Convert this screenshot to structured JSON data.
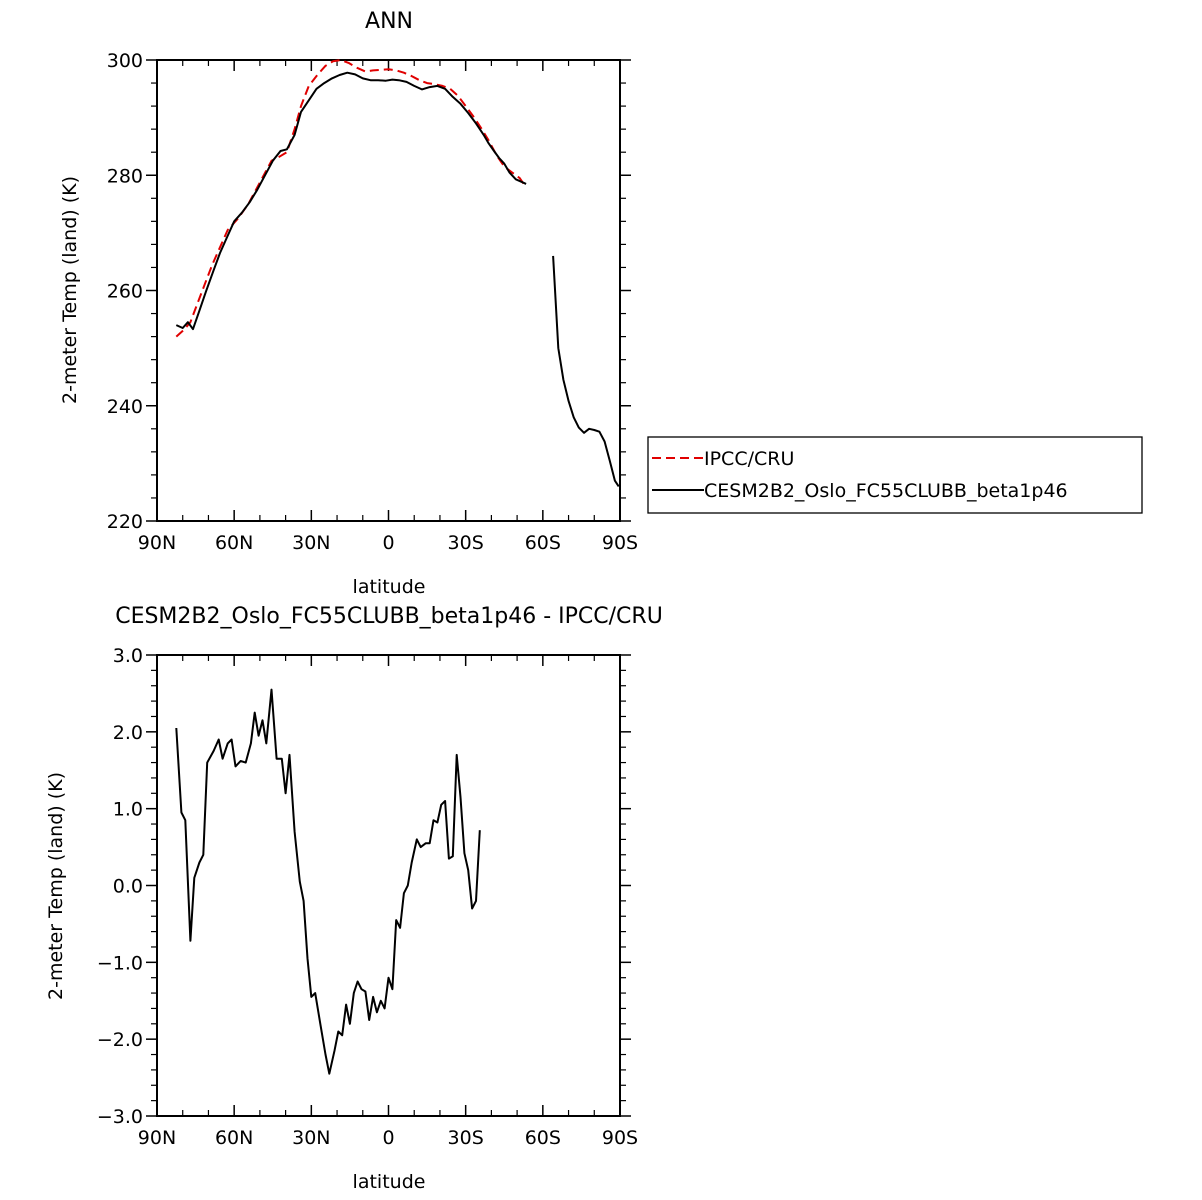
{
  "chart_data": [
    {
      "type": "line",
      "title": "ANN",
      "xlabel": "latitude",
      "ylabel": "2-meter Temp (land) (K)",
      "xlim": [
        90,
        -90
      ],
      "ylim": [
        220,
        300
      ],
      "xticks": [
        90,
        60,
        30,
        0,
        -30,
        -60,
        -90
      ],
      "xtick_labels": [
        "90N",
        "60N",
        "30N",
        "0",
        "30S",
        "60S",
        "90S"
      ],
      "yticks": [
        220,
        240,
        260,
        280,
        300
      ],
      "ytick_labels": [
        "220",
        "240",
        "260",
        "280",
        "300"
      ],
      "grid": false,
      "legend_position": "right",
      "series": [
        {
          "name": "IPCC/CRU",
          "color": "#e00000",
          "style": "dashed",
          "points": [
            [
              82.5,
              252
            ],
            [
              79.5,
              253.2
            ],
            [
              77,
              254.5
            ],
            [
              74.5,
              257.5
            ],
            [
              71.5,
              261
            ],
            [
              68.5,
              264.5
            ],
            [
              65.5,
              267.5
            ],
            [
              62.5,
              270.5
            ],
            [
              58.5,
              272.5
            ],
            [
              54.5,
              275
            ],
            [
              51.5,
              277.5
            ],
            [
              48.5,
              280
            ],
            [
              45.5,
              282.5
            ],
            [
              42.5,
              283.2
            ],
            [
              39.5,
              284
            ],
            [
              36.5,
              288
            ],
            [
              34,
              292
            ],
            [
              31,
              295.5
            ],
            [
              27.5,
              297.5
            ],
            [
              24.5,
              299
            ],
            [
              21.5,
              299.8
            ],
            [
              18.5,
              300
            ],
            [
              15.5,
              299.5
            ],
            [
              12,
              298.6
            ],
            [
              9,
              298
            ],
            [
              6,
              298.2
            ],
            [
              3,
              298.3
            ],
            [
              0,
              298.4
            ],
            [
              -3,
              298.2
            ],
            [
              -6,
              297.8
            ],
            [
              -9,
              297.2
            ],
            [
              -12,
              296.5
            ],
            [
              -15,
              296
            ],
            [
              -18,
              295.8
            ],
            [
              -21,
              295.5
            ],
            [
              -24,
              295
            ],
            [
              -27,
              293.8
            ],
            [
              -30,
              292
            ],
            [
              -33,
              290.2
            ],
            [
              -36,
              288.2
            ],
            [
              -39,
              286
            ],
            [
              -42,
              283.5
            ],
            [
              -45,
              281.5
            ],
            [
              -48,
              280.5
            ],
            [
              -51,
              279.5
            ],
            [
              -53,
              278.2
            ]
          ]
        },
        {
          "name": "CESM2B2_Oslo_FC55CLUBB_beta1p46",
          "color": "#000000",
          "style": "solid",
          "points": [
            [
              82.5,
              254
            ],
            [
              80,
              253.5
            ],
            [
              78,
              254.5
            ],
            [
              76,
              253.3
            ],
            [
              73.5,
              256.5
            ],
            [
              71,
              259.8
            ],
            [
              68,
              263.5
            ],
            [
              65.5,
              266.5
            ],
            [
              63,
              269
            ],
            [
              60,
              272
            ],
            [
              57,
              273.5
            ],
            [
              54,
              275.3
            ],
            [
              51,
              277.5
            ],
            [
              48,
              280
            ],
            [
              45,
              282.5
            ],
            [
              42,
              284.2
            ],
            [
              39.5,
              284.5
            ],
            [
              36.5,
              287
            ],
            [
              34,
              291
            ],
            [
              31,
              293
            ],
            [
              28,
              295
            ],
            [
              25,
              296
            ],
            [
              22,
              296.8
            ],
            [
              19,
              297.4
            ],
            [
              16,
              297.8
            ],
            [
              13,
              297.5
            ],
            [
              10,
              296.8
            ],
            [
              7,
              296.5
            ],
            [
              4,
              296.5
            ],
            [
              1,
              296.4
            ],
            [
              -1.5,
              296.6
            ],
            [
              -4,
              296.5
            ],
            [
              -7,
              296.2
            ],
            [
              -10,
              295.5
            ],
            [
              -13,
              294.9
            ],
            [
              -16,
              295.3
            ],
            [
              -19,
              295.5
            ],
            [
              -22,
              295
            ],
            [
              -25,
              293.6
            ],
            [
              -28,
              292.4
            ],
            [
              -31,
              290.8
            ],
            [
              -34,
              289
            ],
            [
              -37,
              287
            ],
            [
              -39,
              285.5
            ],
            [
              -41,
              284.2
            ],
            [
              -43,
              283
            ],
            [
              -45,
              282
            ],
            [
              -47,
              280.5
            ],
            [
              -49.5,
              279.3
            ],
            [
              -52,
              278.8
            ],
            [
              -53.5,
              278.5
            ]
          ]
        },
        {
          "name": "CESM2B2_Oslo_FC55CLUBB_beta1p46",
          "color": "#000000",
          "style": "solid",
          "legend": false,
          "points": [
            [
              -64,
              266
            ],
            [
              -66,
              250
            ],
            [
              -68,
              244.5
            ],
            [
              -70,
              240.8
            ],
            [
              -72,
              238
            ],
            [
              -74,
              236.2
            ],
            [
              -76,
              235.3
            ],
            [
              -78,
              236
            ],
            [
              -80,
              235.8
            ],
            [
              -82,
              235.5
            ],
            [
              -84,
              233.8
            ],
            [
              -86,
              230.5
            ],
            [
              -88,
              227
            ],
            [
              -89.5,
              226
            ]
          ]
        }
      ]
    },
    {
      "type": "line",
      "title": "CESM2B2_Oslo_FC55CLUBB_beta1p46 - IPCC/CRU",
      "xlabel": "latitude",
      "ylabel": "2-meter Temp (land) (K)",
      "xlim": [
        90,
        -90
      ],
      "ylim": [
        -3,
        3
      ],
      "xticks": [
        90,
        60,
        30,
        0,
        -30,
        -60,
        -90
      ],
      "xtick_labels": [
        "90N",
        "60N",
        "30N",
        "0",
        "30S",
        "60S",
        "90S"
      ],
      "yticks": [
        -3,
        -2,
        -1,
        0,
        1,
        2,
        3
      ],
      "ytick_labels": [
        "−3.0",
        "−2.0",
        "−1.0",
        "0.0",
        "1.0",
        "2.0",
        "3.0"
      ],
      "grid": false,
      "series": [
        {
          "color": "#000000",
          "style": "solid",
          "points": [
            [
              82.5,
              2.05
            ],
            [
              80.5,
              0.95
            ],
            [
              79,
              0.85
            ],
            [
              77,
              -0.72
            ],
            [
              75.5,
              0.1
            ],
            [
              73.5,
              0.3
            ],
            [
              72,
              0.4
            ],
            [
              70.5,
              1.6
            ],
            [
              68,
              1.75
            ],
            [
              66,
              1.9
            ],
            [
              64.5,
              1.65
            ],
            [
              62.5,
              1.85
            ],
            [
              61,
              1.9
            ],
            [
              59.5,
              1.55
            ],
            [
              57.5,
              1.62
            ],
            [
              55.5,
              1.6
            ],
            [
              53.5,
              1.85
            ],
            [
              52,
              2.25
            ],
            [
              50.5,
              1.95
            ],
            [
              49,
              2.15
            ],
            [
              47.5,
              1.85
            ],
            [
              45.5,
              2.55
            ],
            [
              43.5,
              1.65
            ],
            [
              41.5,
              1.65
            ],
            [
              40,
              1.2
            ],
            [
              38.5,
              1.7
            ],
            [
              36.5,
              0.7
            ],
            [
              34.5,
              0.05
            ],
            [
              33,
              -0.2
            ],
            [
              31.5,
              -0.95
            ],
            [
              30,
              -1.45
            ],
            [
              28.5,
              -1.4
            ],
            [
              26.5,
              -1.8
            ],
            [
              24.5,
              -2.2
            ],
            [
              23,
              -2.45
            ],
            [
              21,
              -2.15
            ],
            [
              19.5,
              -1.9
            ],
            [
              18,
              -1.95
            ],
            [
              16.5,
              -1.55
            ],
            [
              15,
              -1.8
            ],
            [
              13.5,
              -1.4
            ],
            [
              12,
              -1.25
            ],
            [
              10.5,
              -1.35
            ],
            [
              9,
              -1.38
            ],
            [
              7.5,
              -1.75
            ],
            [
              6,
              -1.45
            ],
            [
              4.5,
              -1.65
            ],
            [
              3,
              -1.5
            ],
            [
              1.5,
              -1.6
            ],
            [
              0,
              -1.2
            ],
            [
              -1.5,
              -1.35
            ],
            [
              -3,
              -0.45
            ],
            [
              -4.5,
              -0.55
            ],
            [
              -6,
              -0.1
            ],
            [
              -7.5,
              0
            ],
            [
              -9,
              0.3
            ],
            [
              -11,
              0.6
            ],
            [
              -12.5,
              0.5
            ],
            [
              -14.5,
              0.55
            ],
            [
              -16,
              0.55
            ],
            [
              -17.5,
              0.85
            ],
            [
              -19,
              0.82
            ],
            [
              -20.5,
              1.05
            ],
            [
              -22,
              1.1
            ],
            [
              -23.5,
              0.35
            ],
            [
              -25,
              0.38
            ],
            [
              -26.5,
              1.7
            ],
            [
              -28,
              1.15
            ],
            [
              -29.5,
              0.42
            ],
            [
              -31,
              0.2
            ],
            [
              -32.5,
              -0.3
            ],
            [
              -34,
              -0.2
            ],
            [
              -35.5,
              0.72
            ]
          ]
        }
      ]
    }
  ]
}
